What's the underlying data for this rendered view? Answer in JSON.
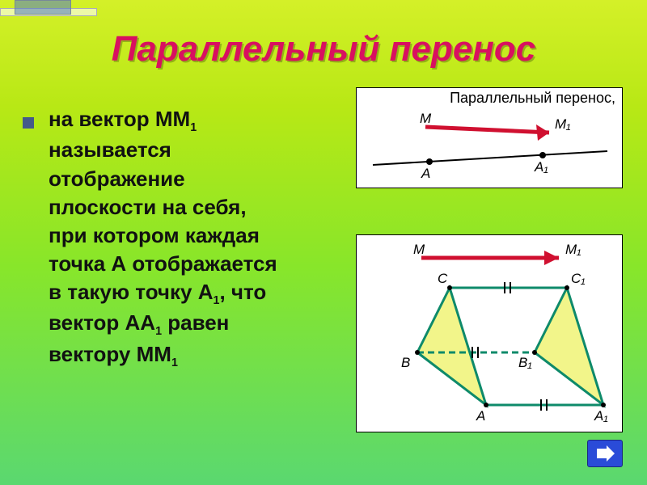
{
  "title": {
    "text": "Параллельный перенос",
    "color": "#d81060",
    "fontsize": 44
  },
  "body": {
    "lines": [
      {
        "plain": "на вектор ",
        "bold": "ММ",
        "sub": "1"
      },
      {
        "plain": "называется"
      },
      {
        "plain": "отображение"
      },
      {
        "plain": "плоскости на себя,"
      },
      {
        "plain": "при котором каждая"
      },
      {
        "plain": "точка ",
        "bold": "А",
        "plain2": " отображается"
      },
      {
        "plain": "в такую точку ",
        "bold": "А",
        "sub": "1",
        "plain2": ", что"
      },
      {
        "plain": "вектор ",
        "bold": "АА",
        "sub": "1",
        "plain2": " равен"
      },
      {
        "plain": "вектору ",
        "bold": "ММ",
        "sub": "1"
      }
    ],
    "fontsize": 26
  },
  "figure_top": {
    "caption": "Параллельный перенос,",
    "labels": {
      "M": "M",
      "M1": "M₁",
      "A": "A",
      "A1": "A₁"
    },
    "vector_color": "#d01030",
    "line_color": "#000",
    "dot_color": "#000"
  },
  "figure_bot": {
    "labels": {
      "M": "M",
      "M1": "M₁",
      "A": "A",
      "B": "B",
      "C": "C",
      "A1": "A₁",
      "B1": "B₁",
      "C1": "C₁"
    },
    "vector_color": "#d01030",
    "prism_edge": "#0e8a6a",
    "prism_face": "#f2f58a",
    "dash_color": "#000",
    "tick_color": "#000"
  },
  "nav": {
    "color": "#2a4bd8",
    "arrow": "#ffffff"
  }
}
